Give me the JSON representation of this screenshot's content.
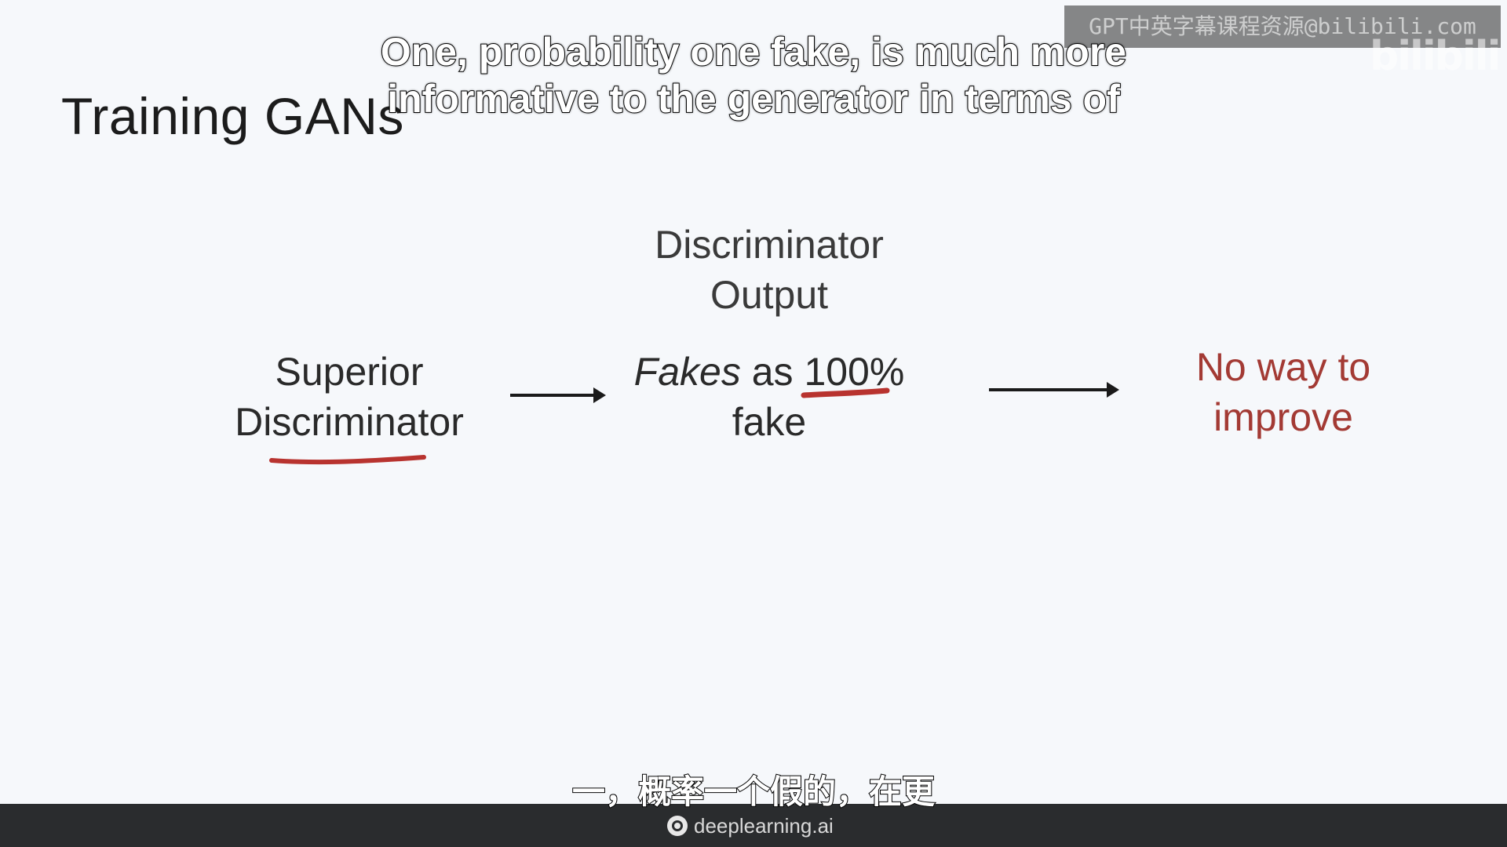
{
  "slide": {
    "title": "Training GANs",
    "left_node": {
      "line1": "Superior",
      "line2": "Discriminator"
    },
    "center_header": {
      "line1": "Discriminator",
      "line2": "Output"
    },
    "center_node": {
      "italic_word": "Fakes",
      "mid": " as ",
      "percent": "100%",
      "line2": "fake"
    },
    "right_node": {
      "line1": "No way to",
      "line2": "improve"
    },
    "underline_color": "#b8332f",
    "accent_color": "#a33a34"
  },
  "subtitles": {
    "english_line1": "One, probability one fake, is much more",
    "english_line2": "informative to the generator in terms of",
    "chinese": "一，概率一个假的，在更"
  },
  "watermark": {
    "text": "GPT中英字幕课程资源@bilibili.com",
    "logo": "bilibili"
  },
  "footer": {
    "brand": "deeplearning.ai",
    "brand_icon": "deeplearning-logo-icon"
  }
}
